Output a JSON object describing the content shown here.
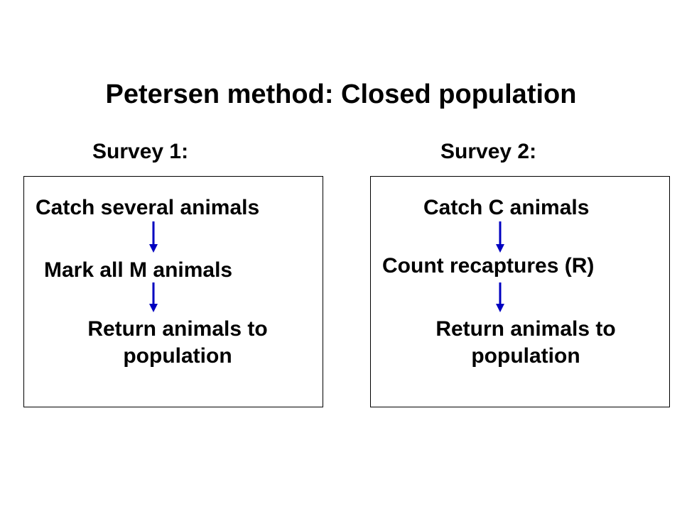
{
  "title": "Petersen method: Closed population",
  "colors": {
    "arrow": "#0000c0",
    "border": "#000000",
    "text": "#000000",
    "background": "#ffffff"
  },
  "survey1": {
    "label": "Survey 1:",
    "steps": {
      "catch": "Catch several animals",
      "mark": "Mark all M animals",
      "return_line1": "Return animals to",
      "return_line2": "population"
    }
  },
  "survey2": {
    "label": "Survey 2:",
    "steps": {
      "catch": "Catch C animals",
      "count": "Count recaptures (R)",
      "return_line1": "Return animals to",
      "return_line2": "population"
    }
  }
}
